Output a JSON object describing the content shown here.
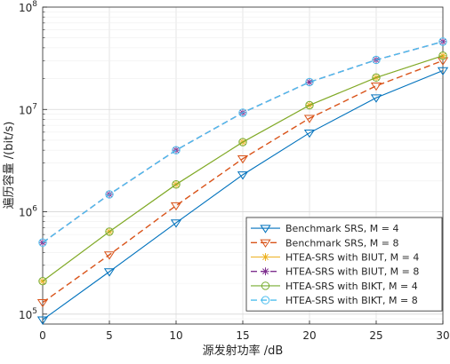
{
  "chart_data": {
    "type": "line",
    "xlabel": "源发射功率 /dB",
    "ylabel": "遍历容量 /(bit/s)",
    "x": [
      0,
      5,
      10,
      15,
      20,
      25,
      30
    ],
    "xlim": [
      0,
      30
    ],
    "ylim": [
      80000,
      100000000
    ],
    "yscale": "log",
    "grid": true,
    "legend_position": "bottom-right",
    "x_tick_labels": [
      "0",
      "5",
      "10",
      "15",
      "20",
      "25",
      "30"
    ],
    "y_tick_labels": [
      {
        "base": "10",
        "exp": "5",
        "value": 100000
      },
      {
        "base": "10",
        "exp": "6",
        "value": 1000000
      },
      {
        "base": "10",
        "exp": "7",
        "value": 10000000
      },
      {
        "base": "10",
        "exp": "8",
        "value": 100000000
      }
    ],
    "series": [
      {
        "name": "Benchmark SRS, M = 4",
        "color": "#0072BD",
        "dash": "solid",
        "marker": "triangle-down",
        "values": [
          88000,
          260000,
          780000,
          2300000,
          5900000,
          13000000,
          24000000
        ]
      },
      {
        "name": "Benchmark SRS, M = 8",
        "color": "#D95319",
        "dash": "dashed",
        "marker": "triangle-down",
        "values": [
          130000,
          380000,
          1150000,
          3300000,
          8200000,
          17000000,
          30000000
        ]
      },
      {
        "name": "HTEA-SRS with BIUT, M = 4",
        "color": "#EDB120",
        "dash": "solid",
        "marker": "asterisk",
        "values": [
          210000,
          640000,
          1850000,
          4800000,
          11000000,
          20500000,
          33500000
        ]
      },
      {
        "name": "HTEA-SRS with BIUT, M = 8",
        "color": "#7E2F8E",
        "dash": "dashed",
        "marker": "asterisk",
        "values": [
          500000,
          1480000,
          4000000,
          9300000,
          18500000,
          30500000,
          46000000
        ]
      },
      {
        "name": "HTEA-SRS with BIKT, M = 4",
        "color": "#77AC30",
        "dash": "solid",
        "marker": "circle",
        "values": [
          210000,
          640000,
          1850000,
          4800000,
          11000000,
          20500000,
          33500000
        ]
      },
      {
        "name": "HTEA-SRS with BIKT, M = 8",
        "color": "#4DBEEE",
        "dash": "dashed",
        "marker": "circle",
        "values": [
          500000,
          1480000,
          4000000,
          9300000,
          18500000,
          30500000,
          46000000
        ]
      }
    ]
  }
}
